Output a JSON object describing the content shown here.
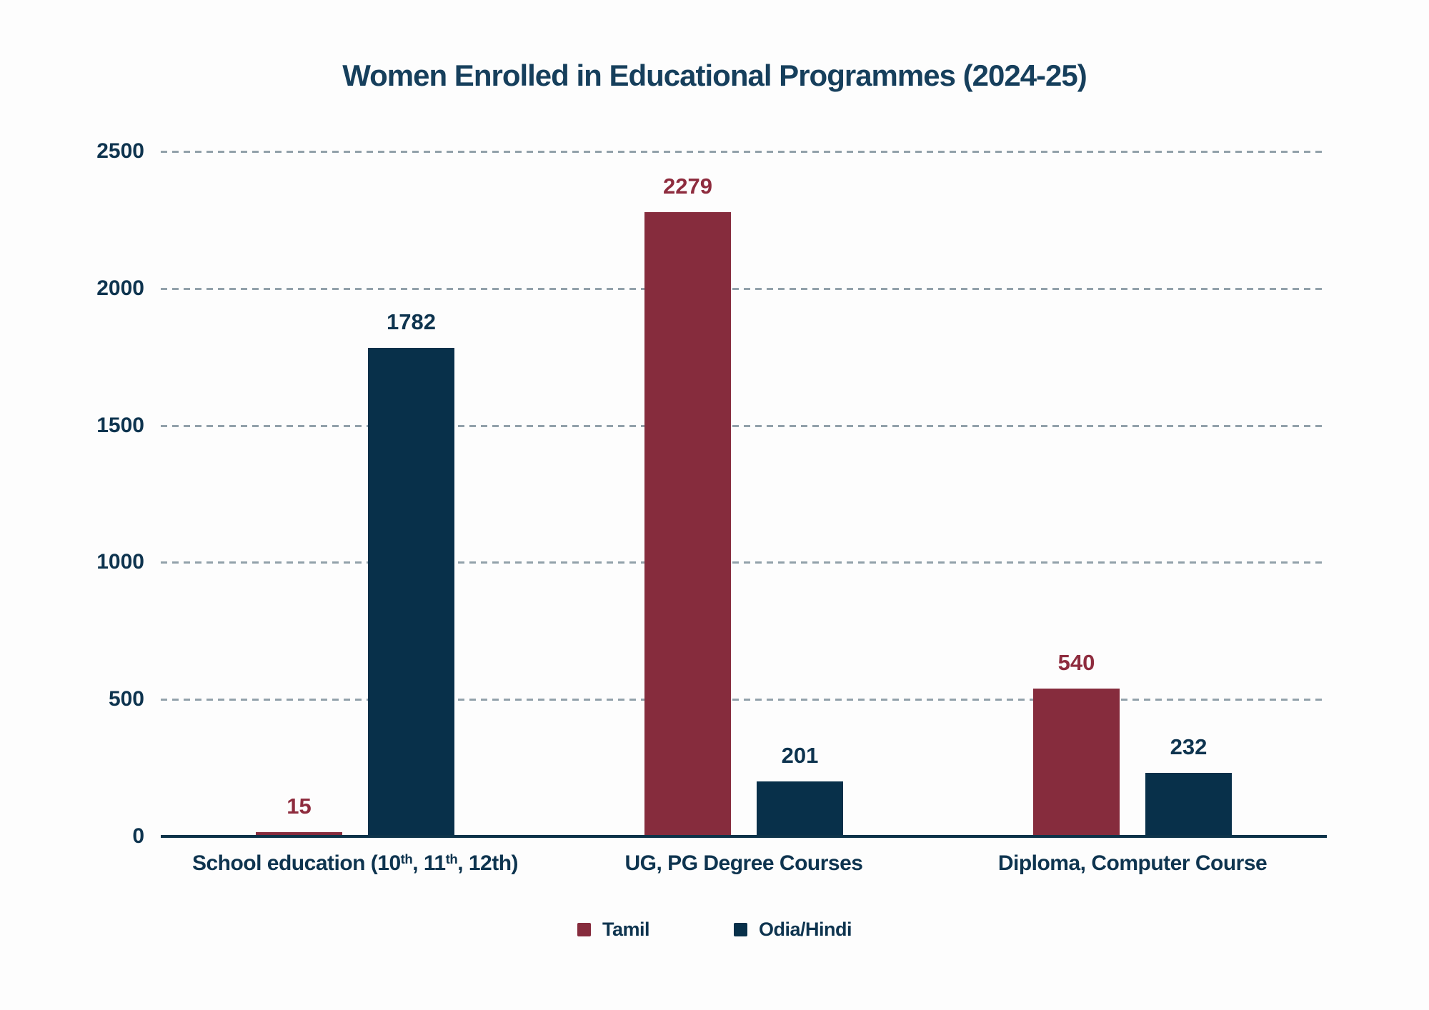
{
  "title": "Women Enrolled in Educational Programmes (2024-25)",
  "colors": {
    "tamil": "#862c3d",
    "odia_hindi": "#08304a",
    "tamil_label": "#8e2c3e",
    "odia_label": "#0e344f",
    "axis": "#0d3349",
    "grid": "#92a1aa",
    "text": "#0e344f",
    "title_text": "#163f5c",
    "background": "#fdfdfd"
  },
  "chart_data": {
    "type": "bar",
    "title": "Women Enrolled in Educational Programmes (2024-25)",
    "categories": [
      "School education (10th, 11th, 12th)",
      "UG, PG Degree Courses",
      "Diploma, Computer Course"
    ],
    "categories_rich": [
      [
        {
          "text": "School education (10"
        },
        {
          "sup": "th"
        },
        {
          "text": ", 11"
        },
        {
          "sup": "th"
        },
        {
          "text": ", 12th)"
        }
      ],
      [
        {
          "text": "UG, PG Degree Courses"
        }
      ],
      [
        {
          "text": "Diploma, Computer Course"
        }
      ]
    ],
    "series": [
      {
        "name": "Tamil",
        "values": [
          15,
          2279,
          540
        ]
      },
      {
        "name": "Odia/Hindi",
        "values": [
          1782,
          201,
          232
        ]
      }
    ],
    "xlabel": "",
    "ylabel": "",
    "ylim": [
      0,
      2500
    ],
    "yticks": [
      0,
      500,
      1000,
      1500,
      2000,
      2500
    ],
    "grid": "horizontal-dashed",
    "legend_position": "bottom",
    "bar_value_labels": true
  },
  "legend": {
    "items": [
      {
        "label": "Tamil",
        "color": "#862c3d"
      },
      {
        "label": "Odia/Hindi",
        "color": "#08304a"
      }
    ]
  }
}
